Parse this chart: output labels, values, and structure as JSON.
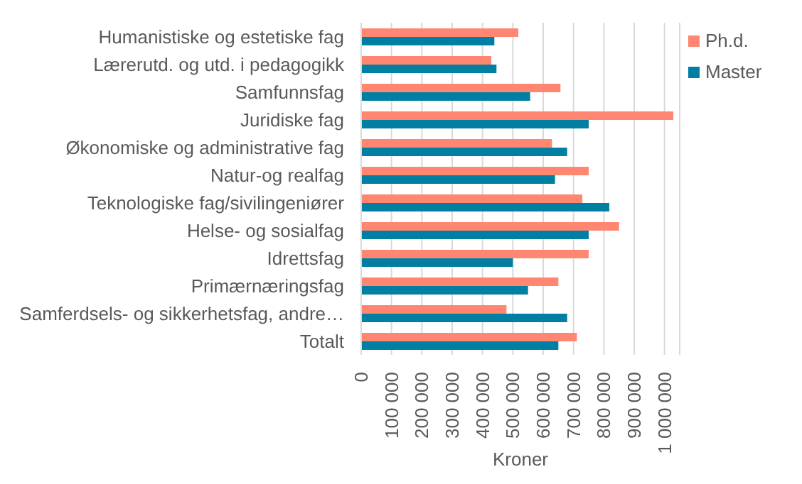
{
  "chart_data": {
    "type": "bar",
    "orientation": "horizontal",
    "xlabel": "Kroner",
    "categories": [
      "Humanistiske og estetiske fag",
      "Lærerutd. og utd. i pedagogikk",
      "Samfunnsfag",
      "Juridiske fag",
      "Økonomiske og administrative fag",
      "Natur-og realfag",
      "Teknologiske fag/sivilingeniører",
      "Helse- og sosialfag",
      "Idrettsfag",
      "Primærnæringsfag",
      "Samferdsels- og sikkerhetsfag, andre…",
      "Totalt"
    ],
    "series": [
      {
        "name": "Ph.d.",
        "color": "#ff8671",
        "values": [
          518000,
          429000,
          657000,
          1029000,
          629000,
          750000,
          729000,
          850000,
          750000,
          650000,
          479000,
          711000
        ]
      },
      {
        "name": "Master",
        "color": "#007fa3",
        "values": [
          439000,
          446000,
          557000,
          750000,
          679000,
          639000,
          818000,
          750000,
          500000,
          550000,
          679000,
          650000
        ]
      }
    ],
    "xlim": [
      0,
      1050000
    ],
    "xticks": [
      0,
      100000,
      200000,
      300000,
      400000,
      500000,
      600000,
      700000,
      800000,
      900000,
      1000000
    ],
    "grid": "x",
    "legend": "top right"
  }
}
